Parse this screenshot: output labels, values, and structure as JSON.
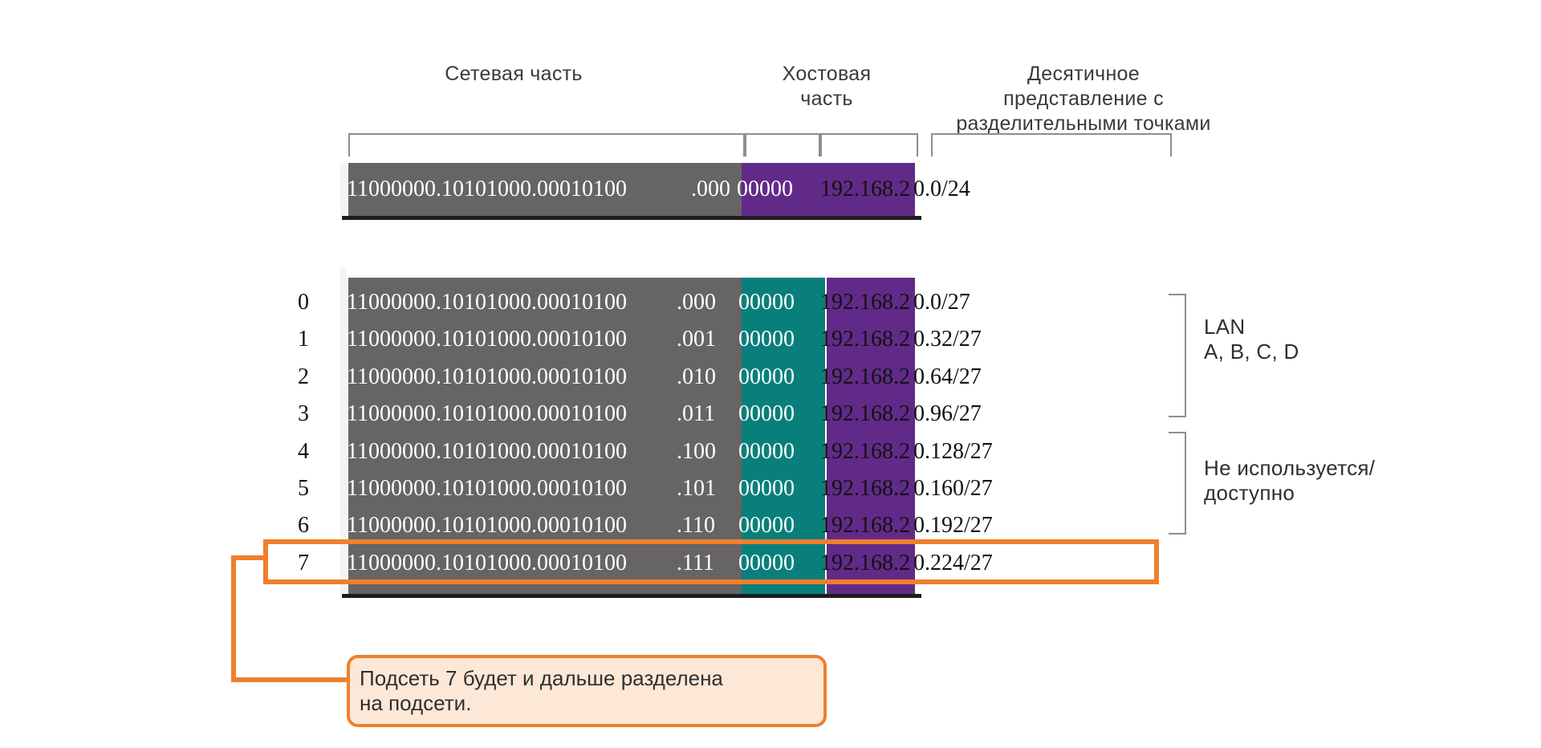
{
  "headers": {
    "network_part": "Сетевая часть",
    "host_part_line1": "Хостовая",
    "host_part_line2": "часть",
    "dotted_line1": "Десятичное",
    "dotted_line2": "представление с",
    "dotted_line3": "разделительными точками"
  },
  "top_row": {
    "binary": "11000000.10101000.00010100",
    "host_bits_a": ".000",
    "host_bits_b": "00000",
    "dotted_a": "192.168.2",
    "dotted_b": "0.0/24"
  },
  "rows": [
    {
      "num": "0",
      "binary": "11000000.10101000.00010100",
      "subnet": ".000",
      "host": "00000",
      "dotted_a": "192.168.2",
      "dotted_b": "0.0/27"
    },
    {
      "num": "1",
      "binary": "11000000.10101000.00010100",
      "subnet": ".001",
      "host": "00000",
      "dotted_a": "192.168.2",
      "dotted_b": "0.32/27"
    },
    {
      "num": "2",
      "binary": "11000000.10101000.00010100",
      "subnet": ".010",
      "host": "00000",
      "dotted_a": "192.168.2",
      "dotted_b": "0.64/27"
    },
    {
      "num": "3",
      "binary": "11000000.10101000.00010100",
      "subnet": ".011",
      "host": "00000",
      "dotted_a": "192.168.2",
      "dotted_b": "0.96/27"
    },
    {
      "num": "4",
      "binary": "11000000.10101000.00010100",
      "subnet": ".100",
      "host": "00000",
      "dotted_a": "192.168.2",
      "dotted_b": "0.128/27"
    },
    {
      "num": "5",
      "binary": "11000000.10101000.00010100",
      "subnet": ".101",
      "host": "00000",
      "dotted_a": "192.168.2",
      "dotted_b": "0.160/27"
    },
    {
      "num": "6",
      "binary": "11000000.10101000.00010100",
      "subnet": ".110",
      "host": "00000",
      "dotted_a": "192.168.2",
      "dotted_b": "0.192/27"
    },
    {
      "num": "7",
      "binary": "11000000.10101000.00010100",
      "subnet": ".111",
      "host": "00000",
      "dotted_a": "192.168.2",
      "dotted_b": "0.224/27"
    }
  ],
  "groups": {
    "lan_line1": "LAN",
    "lan_line2": "A, B, C, D",
    "unused_line1": "Не используется/",
    "unused_line2": "доступно"
  },
  "callout": {
    "line1": "Подсеть 7 будет и дальше разделена",
    "line2": "на подсети."
  },
  "colors": {
    "network": "#666465",
    "subnet_bits": "#087f7b",
    "host_bits": "#622a88",
    "highlight": "#ef7f2d",
    "callout_fill": "#fde8d8"
  }
}
